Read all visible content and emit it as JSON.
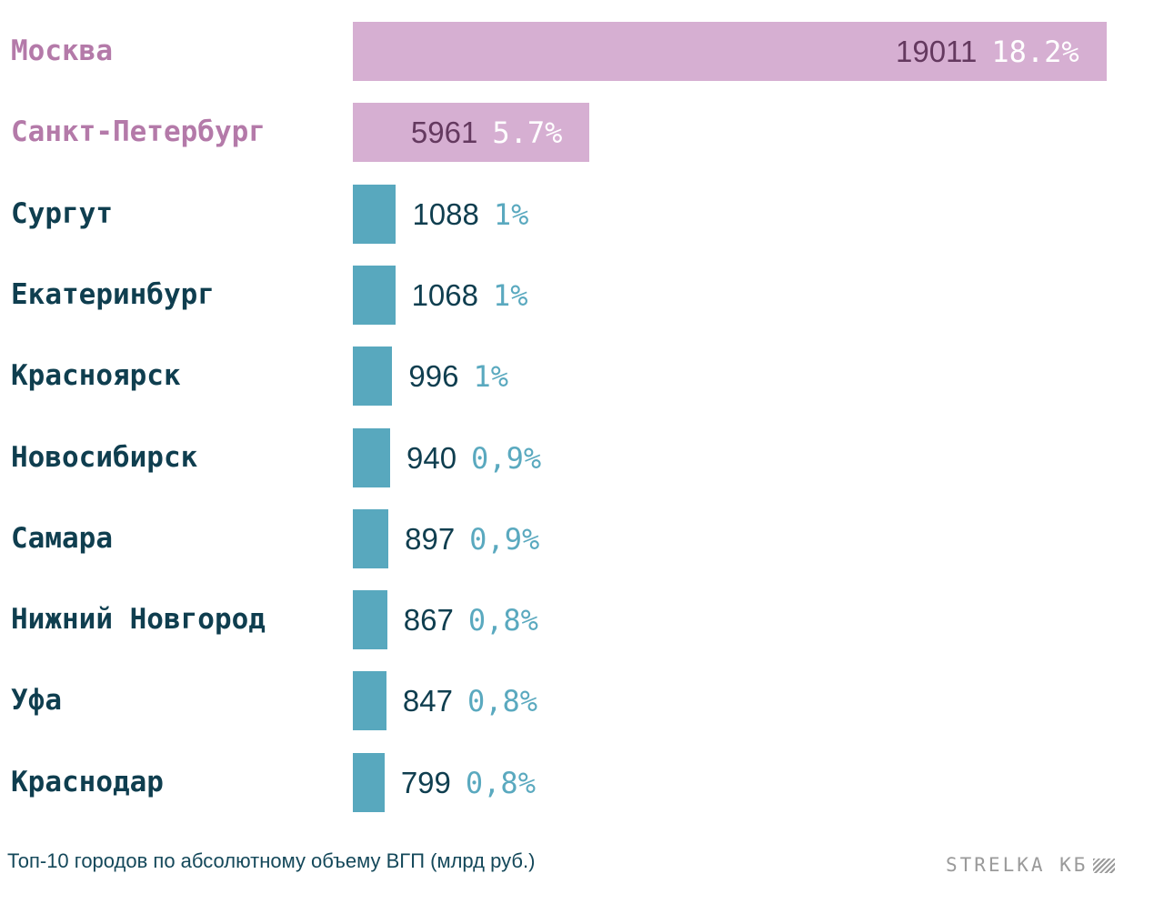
{
  "chart_data": {
    "type": "bar",
    "orientation": "horizontal",
    "categories": [
      "Москва",
      "Санкт-Петербург",
      "Сургут",
      "Екатеринбург",
      "Красноярск",
      "Новосибирск",
      "Самара",
      "Нижний Новгород",
      "Уфа",
      "Краснодар"
    ],
    "values": [
      19011,
      5961,
      1088,
      1068,
      996,
      940,
      897,
      867,
      847,
      799
    ],
    "value_labels": [
      "19011",
      "5961",
      "1088",
      "1068",
      "996",
      "940",
      "897",
      "867",
      "847",
      "799"
    ],
    "shares": [
      "18.2%",
      "5.7%",
      "1%",
      "1%",
      "1%",
      "0,9%",
      "0,9%",
      "0,8%",
      "0,8%",
      "0,8%"
    ],
    "highlight": [
      true,
      true,
      false,
      false,
      false,
      false,
      false,
      false,
      false,
      false
    ],
    "title": "",
    "xlabel": "",
    "ylabel": "",
    "grid": false,
    "legend": "none"
  },
  "colors": {
    "highlight_bar": "#d6afd2",
    "highlight_label": "#b47aa9",
    "highlight_value": "#64395f",
    "highlight_share": "#ffffff",
    "bar": "#58a8be",
    "label": "#0f3e4f",
    "value": "#0f3e4f",
    "share": "#5aa9bf"
  },
  "caption": "Топ-10 городов по абсолютному объему ВГП (млрд руб.)",
  "brand": "STRELKA КБ",
  "brand_icon": "hatched-square-icon"
}
